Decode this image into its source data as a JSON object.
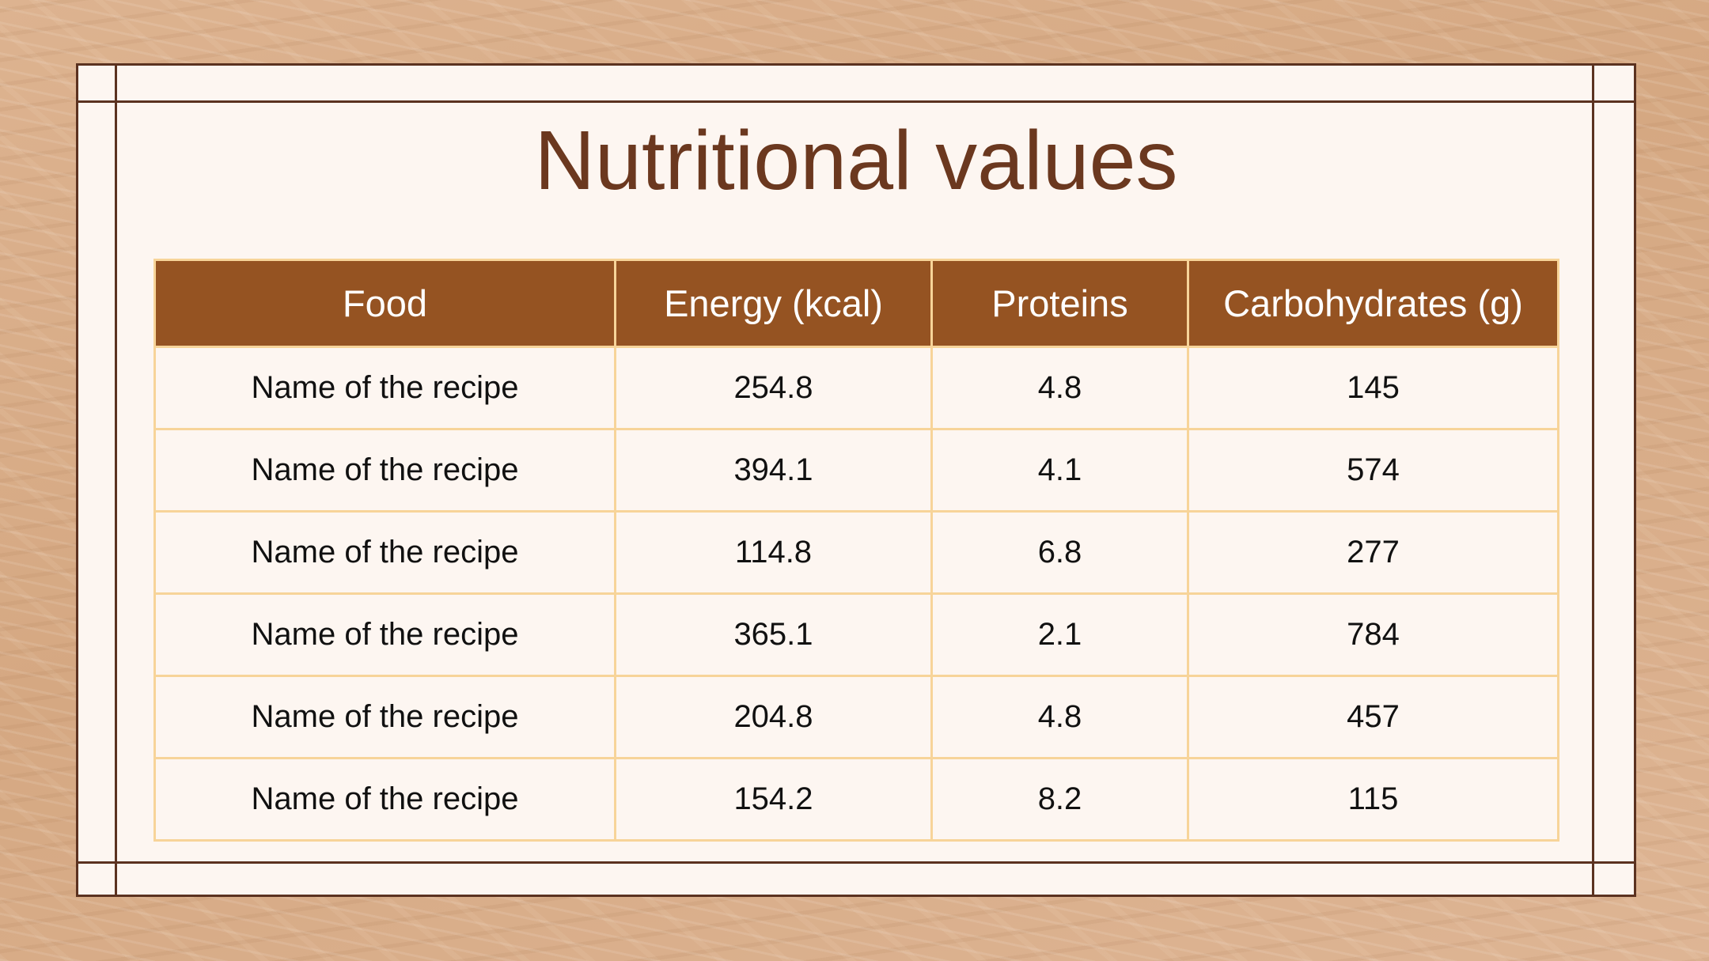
{
  "slide": {
    "title": "Nutritional values"
  },
  "table": {
    "columns": [
      "Food",
      "Energy (kcal)",
      "Proteins",
      "Carbohydrates (g)"
    ],
    "rows": [
      [
        "Name of the recipe",
        "254.8",
        "4.8",
        "145"
      ],
      [
        "Name of the recipe",
        "394.1",
        "4.1",
        "574"
      ],
      [
        "Name of the recipe",
        "114.8",
        "6.8",
        "277"
      ],
      [
        "Name of the recipe",
        "365.1",
        "2.1",
        "784"
      ],
      [
        "Name of the recipe",
        "204.8",
        "4.8",
        "457"
      ],
      [
        "Name of the recipe",
        "154.2",
        "8.2",
        "115"
      ]
    ]
  },
  "colors": {
    "frame": "#5b3220",
    "title": "#6b381f",
    "header_fill": "#955322",
    "grid": "#f7d499",
    "panel": "#fdf6f1",
    "background": "#d9ad8a"
  }
}
